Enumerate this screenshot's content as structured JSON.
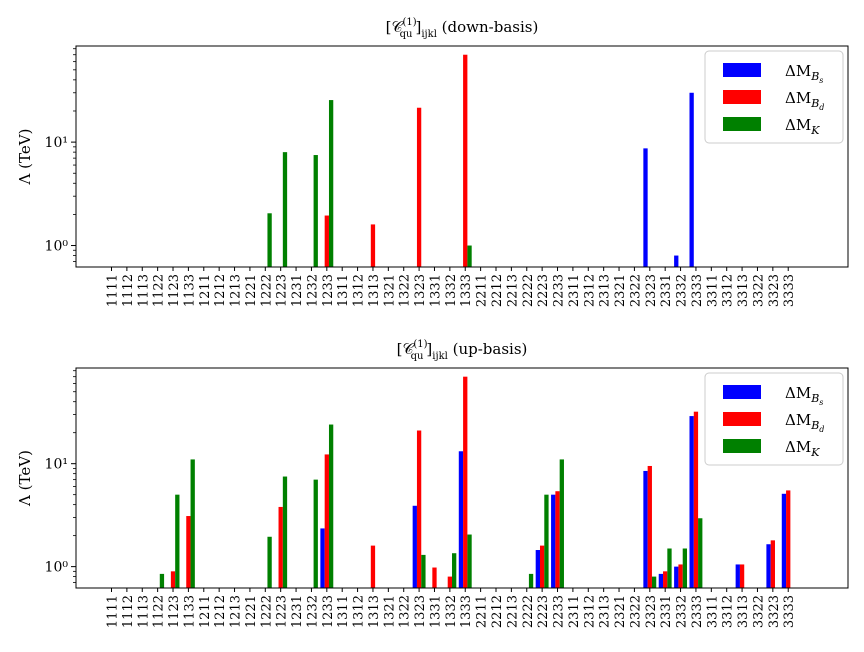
{
  "chart_data": [
    {
      "type": "bar",
      "title": "[𝒞(1)qu]ijkl (down-basis)",
      "ylabel": "Λ (TeV)",
      "yscale": "log",
      "ylim": [
        0.62,
        85
      ],
      "yticks": [
        {
          "value": 1,
          "label": "10⁰"
        },
        {
          "value": 10,
          "label": "10¹"
        }
      ],
      "legend_position": "top-right",
      "categories": [
        "1111",
        "1112",
        "1113",
        "1122",
        "1123",
        "1133",
        "1211",
        "1212",
        "1213",
        "1221",
        "1222",
        "1223",
        "1231",
        "1232",
        "1233",
        "1311",
        "1312",
        "1313",
        "1321",
        "1322",
        "1323",
        "1331",
        "1332",
        "1333",
        "2211",
        "2212",
        "2213",
        "2222",
        "2223",
        "2233",
        "2311",
        "2312",
        "2313",
        "2321",
        "2322",
        "2323",
        "2331",
        "2332",
        "2333",
        "3311",
        "3312",
        "3313",
        "3322",
        "3323",
        "3333"
      ],
      "series": [
        {
          "name": "ΔM_Bs",
          "color": "#0000ff",
          "values": [
            null,
            null,
            null,
            null,
            null,
            null,
            null,
            null,
            null,
            null,
            null,
            null,
            null,
            null,
            null,
            null,
            null,
            null,
            null,
            null,
            null,
            null,
            null,
            null,
            null,
            null,
            null,
            null,
            null,
            null,
            null,
            null,
            null,
            null,
            null,
            8.7,
            null,
            0.8,
            30,
            null,
            null,
            null,
            null,
            null,
            null
          ]
        },
        {
          "name": "ΔM_Bd",
          "color": "#ff0000",
          "values": [
            null,
            null,
            null,
            null,
            null,
            null,
            null,
            null,
            null,
            null,
            null,
            null,
            null,
            null,
            1.95,
            null,
            null,
            1.6,
            null,
            null,
            21.5,
            null,
            null,
            70,
            null,
            null,
            null,
            null,
            null,
            null,
            null,
            null,
            null,
            null,
            null,
            null,
            null,
            null,
            null,
            null,
            null,
            null,
            null,
            null,
            null
          ]
        },
        {
          "name": "ΔM_K",
          "color": "#008000",
          "values": [
            null,
            null,
            null,
            null,
            null,
            null,
            null,
            null,
            null,
            null,
            2.05,
            8.0,
            null,
            7.5,
            25.5,
            null,
            null,
            null,
            null,
            null,
            null,
            null,
            null,
            1.0,
            null,
            null,
            null,
            null,
            null,
            null,
            null,
            null,
            null,
            null,
            null,
            null,
            null,
            null,
            null,
            null,
            null,
            null,
            null,
            null,
            null
          ]
        }
      ]
    },
    {
      "type": "bar",
      "title": "[𝒞(1)qu]ijkl (up-basis)",
      "ylabel": "Λ (TeV)",
      "yscale": "log",
      "ylim": [
        0.62,
        85
      ],
      "yticks": [
        {
          "value": 1,
          "label": "10⁰"
        },
        {
          "value": 10,
          "label": "10¹"
        }
      ],
      "legend_position": "top-right",
      "categories": [
        "1111",
        "1112",
        "1113",
        "1122",
        "1123",
        "1133",
        "1211",
        "1212",
        "1213",
        "1221",
        "1222",
        "1223",
        "1231",
        "1232",
        "1233",
        "1311",
        "1312",
        "1313",
        "1321",
        "1322",
        "1323",
        "1331",
        "1332",
        "1333",
        "2211",
        "2212",
        "2213",
        "2222",
        "2223",
        "2233",
        "2311",
        "2312",
        "2313",
        "2321",
        "2322",
        "2323",
        "2331",
        "2332",
        "2333",
        "3311",
        "3312",
        "3313",
        "3322",
        "3323",
        "3333"
      ],
      "series": [
        {
          "name": "ΔM_Bs",
          "color": "#0000ff",
          "values": [
            null,
            null,
            null,
            null,
            null,
            null,
            null,
            null,
            null,
            null,
            null,
            null,
            null,
            null,
            2.35,
            null,
            null,
            null,
            null,
            null,
            3.9,
            null,
            null,
            13.2,
            null,
            null,
            null,
            null,
            1.45,
            5.0,
            null,
            null,
            null,
            null,
            null,
            8.5,
            0.85,
            1.0,
            29,
            null,
            null,
            1.05,
            null,
            1.65,
            5.1
          ]
        },
        {
          "name": "ΔM_Bd",
          "color": "#ff0000",
          "values": [
            null,
            null,
            null,
            null,
            0.9,
            3.1,
            null,
            null,
            null,
            null,
            null,
            3.8,
            null,
            null,
            12.3,
            null,
            null,
            1.6,
            null,
            null,
            21,
            0.98,
            0.8,
            70,
            null,
            null,
            null,
            null,
            1.6,
            5.4,
            null,
            null,
            null,
            null,
            null,
            9.5,
            0.9,
            1.05,
            32,
            null,
            null,
            1.05,
            null,
            1.8,
            5.5
          ]
        },
        {
          "name": "ΔM_K",
          "color": "#008000",
          "values": [
            null,
            null,
            null,
            0.85,
            5.0,
            11.0,
            null,
            null,
            null,
            null,
            1.95,
            7.5,
            null,
            7.0,
            24,
            null,
            null,
            null,
            null,
            null,
            1.3,
            null,
            1.35,
            2.05,
            null,
            null,
            null,
            0.85,
            5.0,
            11.0,
            null,
            null,
            null,
            null,
            null,
            0.8,
            1.5,
            1.5,
            2.95,
            null,
            null,
            null,
            null,
            null,
            null
          ]
        }
      ]
    }
  ]
}
